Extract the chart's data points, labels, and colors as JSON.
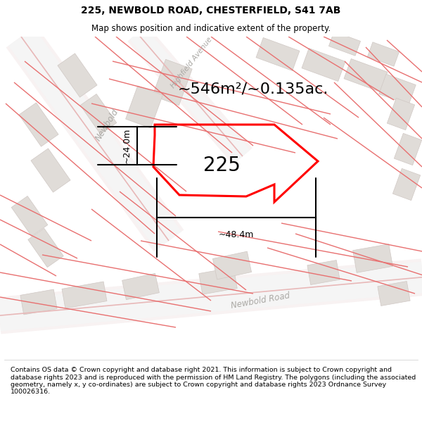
{
  "title": "225, NEWBOLD ROAD, CHESTERFIELD, S41 7AB",
  "subtitle": "Map shows position and indicative extent of the property.",
  "footer": "Contains OS data © Crown copyright and database right 2021. This information is subject to Crown copyright and database rights 2023 and is reproduced with the permission of HM Land Registry. The polygons (including the associated geometry, namely x, y co-ordinates) are subject to Crown copyright and database rights 2023 Ordnance Survey 100026316.",
  "area_label": "~546m²/~0.135ac.",
  "property_number": "225",
  "width_label": "~48.4m",
  "height_label": "~24.0m",
  "map_bg": "#ffffff",
  "road_fill": "#f5f5f5",
  "road_edge": "#e8b8b8",
  "building_color": "#e0dcd8",
  "building_edge": "#d0c8c4",
  "plot_color": "#ff0000",
  "plot_lw": 2.2,
  "figsize": [
    6.0,
    6.25
  ],
  "dpi": 100,
  "title_fs": 10,
  "subtitle_fs": 8.5,
  "footer_fs": 6.8,
  "area_fs": 16,
  "num_fs": 20,
  "dim_fs": 9
}
